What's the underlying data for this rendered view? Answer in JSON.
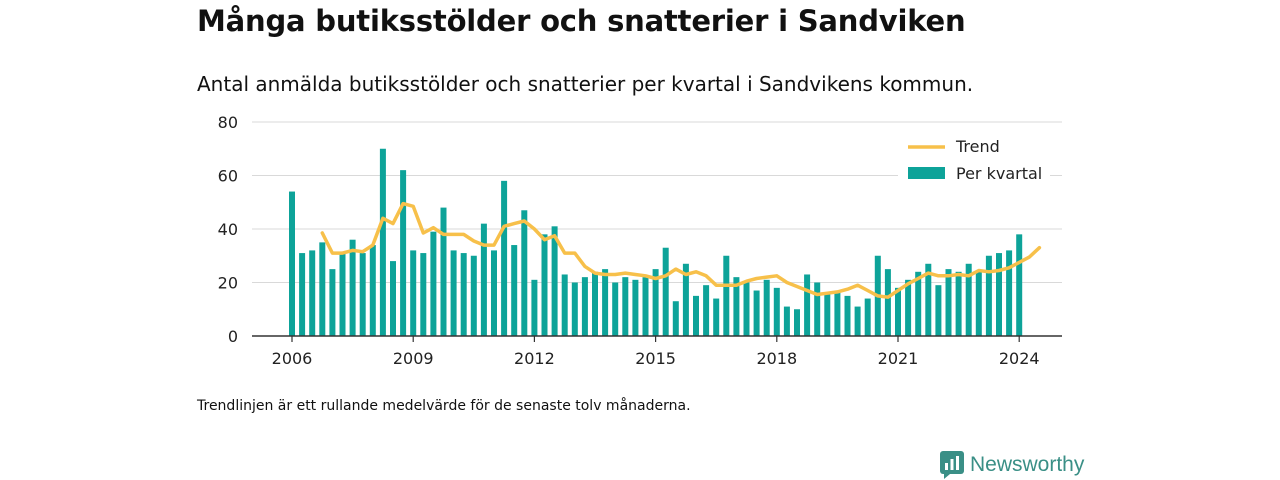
{
  "title": "Många butiksstölder och snatterier i Sandviken",
  "subtitle": "Antal anmälda butiksstölder och snatterier per kvartal i Sandvikens kommun.",
  "footnote": "Trendlinjen är ett rullande medelvärde för de senaste tolv månaderna.",
  "brand": {
    "name": "Newsworthy",
    "icon": "newsworthy-logo-icon"
  },
  "colors": {
    "bars": "#0da399",
    "trend": "#f7c04a",
    "grid": "#d9d9d9",
    "axis": "#333333",
    "brand": "#3a8f86"
  },
  "chart_data": {
    "type": "bar",
    "x_start": 2006,
    "periods_per_year": 4,
    "ylim": [
      0,
      80
    ],
    "yticks": [
      0,
      20,
      40,
      60,
      80
    ],
    "xticks": [
      2006,
      2009,
      2012,
      2015,
      2018,
      2021,
      2024
    ],
    "legend_position": "top-right",
    "series": [
      {
        "name": "Per kvartal",
        "type": "bar",
        "values": [
          54,
          31,
          32,
          35,
          25,
          31,
          36,
          31,
          34,
          70,
          28,
          62,
          32,
          31,
          39,
          48,
          32,
          31,
          30,
          42,
          32,
          58,
          34,
          47,
          21,
          38,
          41,
          23,
          20,
          22,
          24,
          25,
          20,
          22,
          21,
          22,
          25,
          33,
          13,
          27,
          15,
          19,
          14,
          30,
          22,
          20,
          17,
          21,
          18,
          11,
          10,
          23,
          20,
          16,
          17,
          15,
          11,
          14,
          30,
          25,
          18,
          21,
          24,
          27,
          19,
          25,
          24,
          27,
          24,
          30,
          31,
          32,
          38
        ]
      },
      {
        "name": "Trend",
        "type": "line",
        "start_index": 3,
        "values": [
          38.5,
          31,
          31,
          32,
          31.5,
          34,
          44,
          42,
          49.5,
          48.5,
          38.5,
          40.5,
          38,
          38,
          38,
          35.5,
          34,
          34,
          41,
          42,
          43,
          40,
          36,
          37.5,
          31,
          31,
          26,
          23.5,
          23,
          23,
          23.5,
          23,
          22.5,
          21.5,
          22.5,
          25,
          23,
          24,
          22.5,
          19,
          19,
          19,
          20.5,
          21.5,
          22,
          22.5,
          20,
          18.5,
          17,
          15.5,
          16,
          16.5,
          17.5,
          19,
          17,
          15,
          14.5,
          17,
          19.5,
          21.5,
          23.5,
          22.5,
          22.5,
          23,
          22.5,
          24.5,
          24,
          24.5,
          25.5,
          27.5,
          29.5,
          33
        ]
      }
    ]
  }
}
